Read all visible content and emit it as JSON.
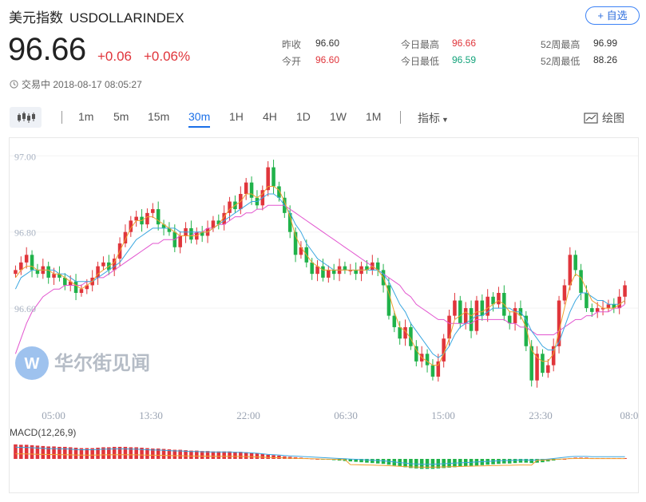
{
  "header": {
    "name": "美元指数",
    "symbol": "USDOLLARINDEX",
    "follow_label": "+ 自选",
    "price": "96.66",
    "change": "+0.06",
    "change_pct": "+0.06%",
    "status_time": "交易中 2018-08-17 08:05:27"
  },
  "stats": {
    "prev_close_label": "昨收",
    "prev_close": "96.60",
    "open_label": "今开",
    "open": "96.60",
    "high_label": "今日最高",
    "high": "96.66",
    "low_label": "今日最低",
    "low": "96.59",
    "w52_high_label": "52周最高",
    "w52_high": "96.99",
    "w52_low_label": "52周最低",
    "w52_low": "88.26"
  },
  "toolbar": {
    "periods": [
      "1m",
      "5m",
      "15m",
      "30m",
      "1H",
      "4H",
      "1D",
      "1W",
      "1M"
    ],
    "active_period": "30m",
    "indicator_label": "指标",
    "draw_label": "绘图"
  },
  "watermark": "华尔街见闻",
  "colors": {
    "up": "#e0353b",
    "down": "#20b24a",
    "accent": "#1a6fe8"
  },
  "chart_data": {
    "type": "candlestick",
    "ytick_labels": [
      "97.00",
      "96.80",
      "96.60"
    ],
    "yticks": [
      97.0,
      96.8,
      96.6
    ],
    "ylim": [
      96.38,
      97.03
    ],
    "xtick_labels": [
      "05:00",
      "13:30",
      "22:00",
      "06:30",
      "15:00",
      "23:30",
      "08:00"
    ],
    "closes": [
      96.7,
      96.72,
      96.74,
      96.7,
      96.69,
      96.71,
      96.68,
      96.69,
      96.68,
      96.66,
      96.67,
      96.64,
      96.65,
      96.66,
      96.68,
      96.71,
      96.72,
      96.7,
      96.73,
      96.77,
      96.8,
      96.83,
      96.84,
      96.82,
      96.85,
      96.86,
      96.82,
      96.81,
      96.8,
      96.76,
      96.79,
      96.81,
      96.78,
      96.8,
      96.79,
      96.81,
      96.83,
      96.82,
      96.85,
      96.88,
      96.86,
      96.9,
      96.93,
      96.89,
      96.87,
      96.91,
      96.97,
      96.92,
      96.89,
      96.85,
      96.8,
      96.74,
      96.76,
      96.72,
      96.69,
      96.71,
      96.68,
      96.7,
      96.69,
      96.71,
      96.7,
      96.7,
      96.69,
      96.71,
      96.7,
      96.72,
      96.7,
      96.66,
      96.58,
      96.55,
      96.52,
      96.55,
      96.5,
      96.46,
      96.48,
      96.45,
      96.42,
      96.46,
      96.52,
      96.58,
      96.62,
      96.56,
      96.6,
      96.54,
      96.62,
      96.58,
      96.63,
      96.61,
      96.64,
      96.58,
      96.56,
      96.6,
      96.58,
      96.5,
      96.41,
      96.48,
      96.43,
      96.45,
      96.5,
      96.62,
      96.66,
      96.74,
      96.7,
      96.64,
      96.6,
      96.59,
      96.6,
      96.6,
      96.61,
      96.6,
      96.63,
      96.66
    ],
    "ma_fast": [
      96.68,
      96.7,
      96.71,
      96.71,
      96.7,
      96.7,
      96.7,
      96.69,
      96.69,
      96.68,
      96.67,
      96.66,
      96.65,
      96.66,
      96.67,
      96.69,
      96.7,
      96.71,
      96.72,
      96.75,
      96.78,
      96.81,
      96.83,
      96.83,
      96.84,
      96.84,
      96.83,
      96.82,
      96.81,
      96.8,
      96.79,
      96.79,
      96.79,
      96.79,
      96.8,
      96.8,
      96.81,
      96.82,
      96.84,
      96.86,
      96.87,
      96.88,
      96.9,
      96.9,
      96.89,
      96.9,
      96.92,
      96.92,
      96.91,
      96.88,
      96.84,
      96.79,
      96.76,
      96.74,
      96.72,
      96.71,
      96.7,
      96.7,
      96.7,
      96.7,
      96.7,
      96.7,
      96.7,
      96.7,
      96.7,
      96.71,
      96.7,
      96.68,
      96.64,
      96.59,
      96.55,
      96.54,
      96.52,
      96.49,
      96.47,
      96.46,
      96.45,
      96.45,
      96.48,
      96.52,
      96.57,
      96.58,
      96.59,
      96.58,
      96.59,
      96.59,
      96.6,
      96.61,
      96.62,
      96.61,
      96.59,
      96.59,
      96.58,
      96.55,
      96.49,
      96.47,
      96.46,
      96.46,
      96.48,
      96.54,
      96.6,
      96.66,
      96.69,
      96.68,
      96.65,
      96.62,
      96.61,
      96.6,
      96.6,
      96.6,
      96.61,
      96.62
    ],
    "ma_mid": [
      96.65,
      96.68,
      96.69,
      96.7,
      96.7,
      96.7,
      96.7,
      96.7,
      96.69,
      96.69,
      96.68,
      96.67,
      96.67,
      96.67,
      96.67,
      96.68,
      96.69,
      96.7,
      96.71,
      96.72,
      96.74,
      96.76,
      96.78,
      96.79,
      96.8,
      96.81,
      96.81,
      96.81,
      96.81,
      96.81,
      96.8,
      96.8,
      96.8,
      96.8,
      96.8,
      96.8,
      96.81,
      96.82,
      96.83,
      96.84,
      96.85,
      96.86,
      96.87,
      96.88,
      96.88,
      96.89,
      96.9,
      96.9,
      96.89,
      96.87,
      96.85,
      96.82,
      96.8,
      96.77,
      96.75,
      96.73,
      96.72,
      96.71,
      96.7,
      96.7,
      96.7,
      96.7,
      96.7,
      96.7,
      96.7,
      96.7,
      96.7,
      96.69,
      96.67,
      96.64,
      96.61,
      96.59,
      96.56,
      96.54,
      96.52,
      96.5,
      96.48,
      96.47,
      96.48,
      96.5,
      96.53,
      96.55,
      96.56,
      96.57,
      96.58,
      96.58,
      96.59,
      96.6,
      96.6,
      96.6,
      96.6,
      96.59,
      96.59,
      96.57,
      96.54,
      96.52,
      96.5,
      96.49,
      96.49,
      96.51,
      96.55,
      96.59,
      96.62,
      96.64,
      96.64,
      96.63,
      96.62,
      96.62,
      96.61,
      96.61,
      96.61,
      96.62
    ],
    "ma_slow": [
      96.48,
      96.52,
      96.56,
      96.59,
      96.61,
      96.63,
      96.64,
      96.65,
      96.65,
      96.66,
      96.66,
      96.66,
      96.66,
      96.67,
      96.67,
      96.68,
      96.68,
      96.69,
      96.7,
      96.71,
      96.72,
      96.73,
      96.74,
      96.75,
      96.76,
      96.77,
      96.77,
      96.78,
      96.78,
      96.78,
      96.79,
      96.79,
      96.79,
      96.8,
      96.8,
      96.81,
      96.81,
      96.82,
      96.82,
      96.83,
      96.84,
      96.84,
      96.85,
      96.85,
      96.86,
      96.86,
      96.87,
      96.87,
      96.87,
      96.87,
      96.86,
      96.85,
      96.84,
      96.83,
      96.82,
      96.81,
      96.8,
      96.79,
      96.78,
      96.77,
      96.76,
      96.75,
      96.74,
      96.73,
      96.72,
      96.71,
      96.7,
      96.69,
      96.68,
      96.67,
      96.66,
      96.64,
      96.63,
      96.61,
      96.6,
      96.59,
      96.58,
      96.57,
      96.57,
      96.56,
      96.56,
      96.56,
      96.56,
      96.56,
      96.57,
      96.57,
      96.57,
      96.57,
      96.57,
      96.57,
      96.56,
      96.56,
      96.55,
      96.55,
      96.54,
      96.53,
      96.53,
      96.53,
      96.53,
      96.54,
      96.55,
      96.56,
      96.57,
      96.57,
      96.58,
      96.58,
      96.59,
      96.59,
      96.59,
      96.6,
      96.6,
      96.61
    ],
    "macd_label": "MACD(12,26,9)",
    "macd_hist": [
      0.035,
      0.034,
      0.034,
      0.033,
      0.032,
      0.031,
      0.03,
      0.03,
      0.029,
      0.029,
      0.028,
      0.027,
      0.026,
      0.026,
      0.026,
      0.027,
      0.028,
      0.028,
      0.029,
      0.029,
      0.029,
      0.028,
      0.028,
      0.027,
      0.026,
      0.025,
      0.025,
      0.024,
      0.023,
      0.022,
      0.022,
      0.021,
      0.02,
      0.02,
      0.019,
      0.019,
      0.018,
      0.018,
      0.018,
      0.018,
      0.017,
      0.017,
      0.016,
      0.015,
      0.014,
      0.012,
      0.01,
      0.009,
      0.008,
      0.006,
      0.005,
      0.004,
      0.003,
      0.002,
      0.001,
      0.0,
      -0.001,
      -0.002,
      -0.003,
      -0.004,
      -0.005,
      -0.006,
      -0.007,
      -0.008,
      -0.009,
      -0.01,
      -0.011,
      -0.012,
      -0.014,
      -0.016,
      -0.018,
      -0.02,
      -0.022,
      -0.023,
      -0.024,
      -0.024,
      -0.024,
      -0.023,
      -0.022,
      -0.021,
      -0.02,
      -0.019,
      -0.018,
      -0.017,
      -0.016,
      -0.015,
      -0.014,
      -0.013,
      -0.012,
      -0.011,
      -0.011,
      -0.01,
      -0.009,
      -0.009,
      -0.01,
      -0.009,
      -0.008,
      -0.006,
      -0.004,
      -0.002,
      0.0,
      0.002,
      0.003,
      0.003,
      0.003,
      0.002,
      0.002,
      0.002,
      0.002,
      0.002,
      0.002,
      0.002
    ]
  }
}
